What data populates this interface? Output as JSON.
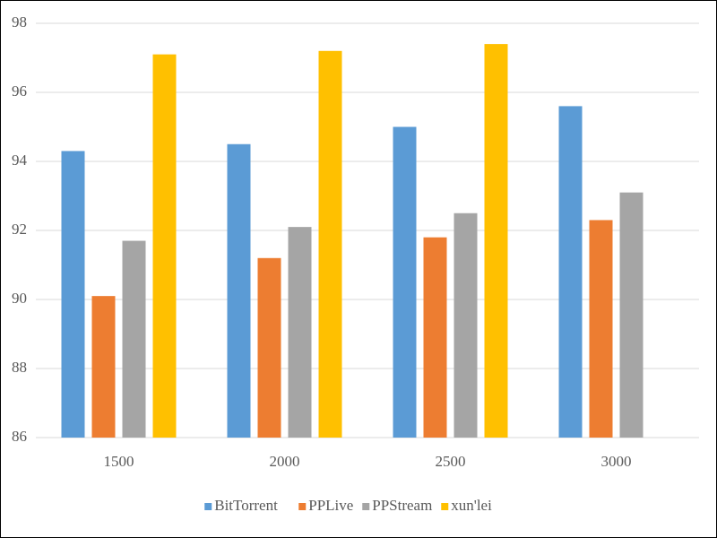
{
  "chart_data": {
    "type": "bar",
    "categories": [
      "1500",
      "2000",
      "2500",
      "3000"
    ],
    "series": [
      {
        "name": "BitTorrent",
        "color": "#5b9bd5",
        "values": [
          94.3,
          94.5,
          95.0,
          95.6
        ]
      },
      {
        "name": "PPLive",
        "color": "#ed7d31",
        "values": [
          90.1,
          91.2,
          91.8,
          92.3
        ]
      },
      {
        "name": "PPStream",
        "color": "#a5a5a5",
        "values": [
          91.7,
          92.1,
          92.5,
          93.1
        ]
      },
      {
        "name": "xun'lei",
        "color": "#ffc000",
        "values": [
          97.1,
          97.2,
          97.4,
          null
        ]
      }
    ],
    "ylim": [
      86,
      98
    ],
    "yticks": [
      86,
      88,
      90,
      92,
      94,
      96,
      98
    ],
    "grid": true,
    "legend": "bottom"
  }
}
